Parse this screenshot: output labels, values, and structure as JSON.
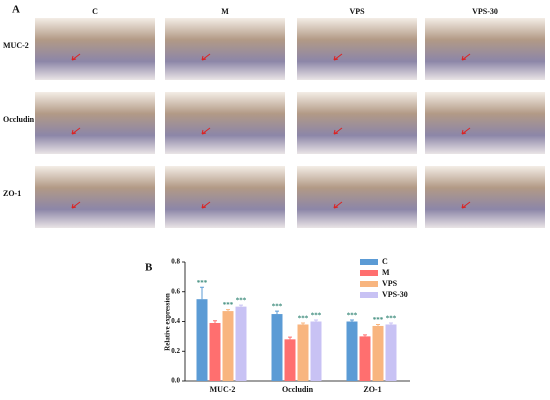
{
  "panel_a": {
    "label": "A",
    "columns": [
      "C",
      "M",
      "VPS",
      "VPS-30"
    ],
    "rows": [
      "MUC-2",
      "Occludin",
      "ZO-1"
    ]
  },
  "chart_data": {
    "type": "bar",
    "label": "B",
    "ylabel": "Relative expression",
    "categories": [
      "MUC-2",
      "Occludin",
      "ZO-1"
    ],
    "series": [
      {
        "name": "C",
        "color": "#5b9bd5",
        "values": [
          0.55,
          0.45,
          0.4
        ],
        "errors": [
          0.08,
          0.02,
          0.01
        ],
        "markers": [
          "***",
          "***",
          "***"
        ]
      },
      {
        "name": "M",
        "color": "#ff6f6f",
        "values": [
          0.39,
          0.28,
          0.3
        ],
        "errors": [
          0.015,
          0.015,
          0.01
        ]
      },
      {
        "name": "VPS",
        "color": "#f8b57f",
        "values": [
          0.47,
          0.38,
          0.37
        ],
        "errors": [
          0.01,
          0.01,
          0.01
        ],
        "markers": [
          "***",
          "***",
          "***"
        ]
      },
      {
        "name": "VPS-30",
        "color": "#c8c2f4",
        "values": [
          0.5,
          0.4,
          0.38
        ],
        "errors": [
          0.01,
          0.01,
          0.01
        ],
        "markers": [
          "***",
          "***",
          "***"
        ]
      }
    ],
    "ylim": [
      0,
      0.8
    ],
    "yticks": [
      {
        "value": 0,
        "label": "0.0"
      },
      0.2,
      0.4,
      0.6,
      0.8
    ]
  }
}
